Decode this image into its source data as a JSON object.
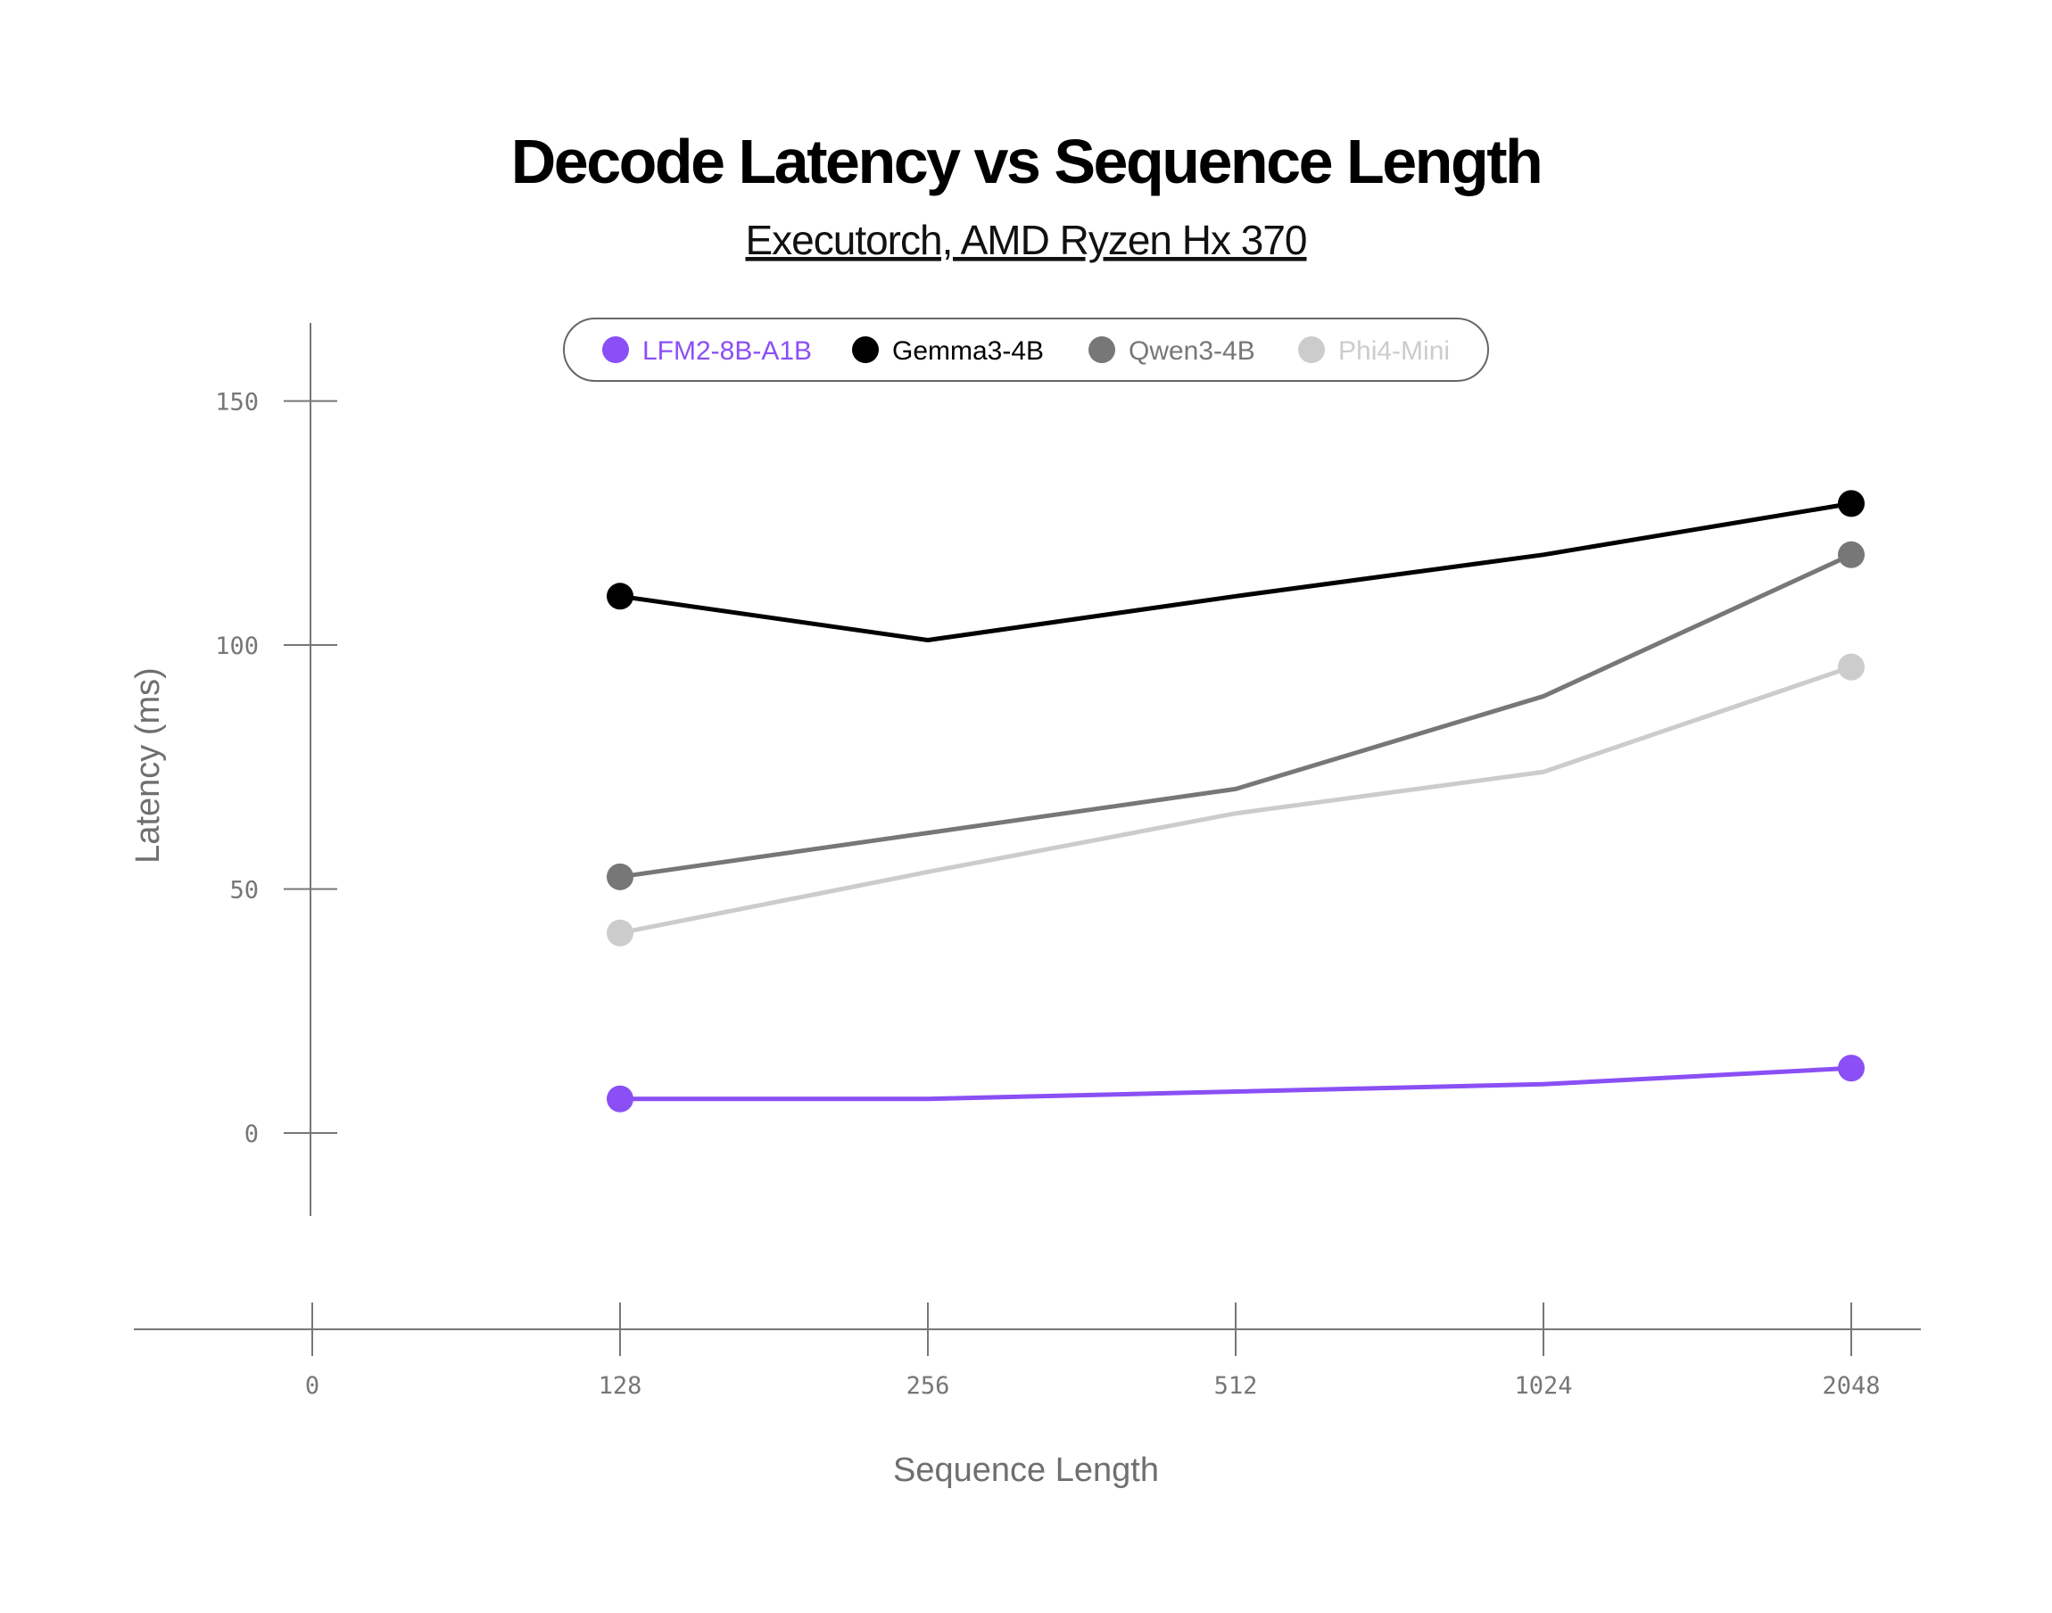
{
  "chart_data": {
    "type": "line",
    "title": "Decode Latency vs Sequence Length",
    "subtitle": "Executorch, AMD Ryzen Hx 370",
    "xlabel": "Sequence Length",
    "ylabel": "Latency (ms)",
    "categories": [
      "0",
      "128",
      "256",
      "512",
      "1024",
      "2048"
    ],
    "yticks": [
      "0",
      "50",
      "100",
      "150"
    ],
    "ylim": [
      -17,
      166
    ],
    "grid": false,
    "legend_position": "top-center",
    "series": [
      {
        "name": "LFM2-8B-A1B",
        "color": "#8a4ff5",
        "values": [
          null,
          7,
          7,
          8.5,
          10,
          13.3
        ],
        "markers": [
          false,
          true,
          false,
          false,
          false,
          true
        ]
      },
      {
        "name": "Gemma3-4B",
        "color": "#000000",
        "values": [
          null,
          110,
          101,
          110,
          118.5,
          129
        ],
        "markers": [
          false,
          true,
          false,
          false,
          false,
          true
        ]
      },
      {
        "name": "Qwen3-4B",
        "color": "#777777",
        "values": [
          null,
          52.5,
          61.5,
          70.5,
          89.5,
          118.5
        ],
        "markers": [
          false,
          true,
          false,
          false,
          false,
          true
        ]
      },
      {
        "name": "Phi4-Mini",
        "color": "#cccccc",
        "values": [
          null,
          41,
          53.5,
          65.5,
          74,
          95.5
        ],
        "markers": [
          false,
          true,
          false,
          false,
          false,
          true
        ]
      }
    ]
  }
}
